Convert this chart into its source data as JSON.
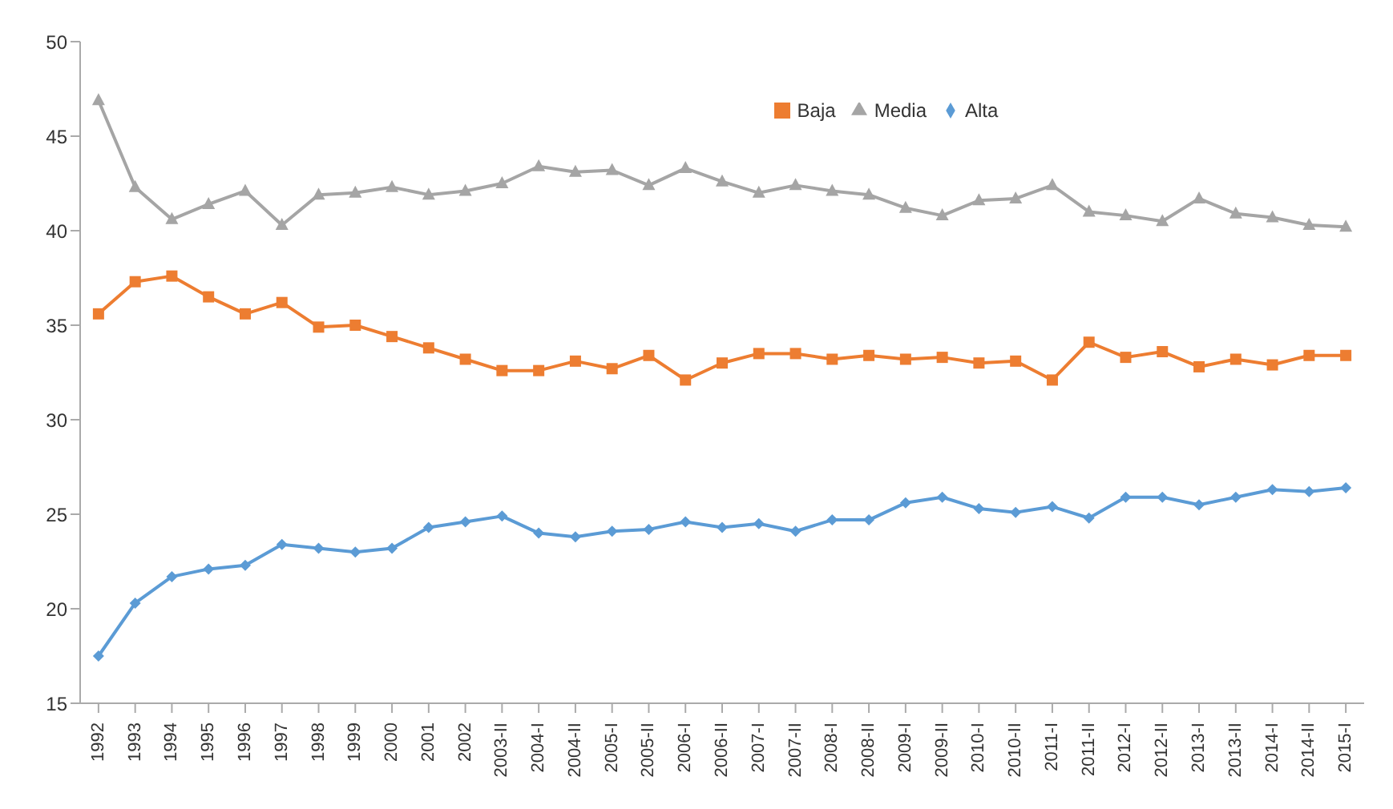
{
  "chart_data": {
    "type": "line",
    "categories": [
      "1992",
      "1993",
      "1994",
      "1995",
      "1996",
      "1997",
      "1998",
      "1999",
      "2000",
      "2001",
      "2002",
      "2003-II",
      "2004-I",
      "2004-II",
      "2005-I",
      "2005-II",
      "2006-I",
      "2006-II",
      "2007-I",
      "2007-II",
      "2008-I",
      "2008-II",
      "2009-I",
      "2009-II",
      "2010-I",
      "2010-II",
      "2011-I",
      "2011-II",
      "2012-I",
      "2012-II",
      "2013-I",
      "2013-II",
      "2014-I",
      "2014-II",
      "2015-I"
    ],
    "series": [
      {
        "name": "Baja",
        "color": "#ed7d31",
        "marker": "square",
        "values": [
          35.6,
          37.3,
          37.6,
          36.5,
          35.6,
          36.2,
          34.9,
          35.0,
          34.4,
          33.8,
          33.2,
          32.6,
          32.6,
          33.1,
          32.7,
          33.4,
          32.1,
          33.0,
          33.5,
          33.5,
          33.2,
          33.4,
          33.2,
          33.3,
          33.0,
          33.1,
          32.1,
          34.1,
          33.3,
          33.6,
          32.8,
          33.2,
          32.9,
          33.4,
          33.4
        ]
      },
      {
        "name": "Media",
        "color": "#a5a5a5",
        "marker": "triangle",
        "values": [
          46.9,
          42.3,
          40.6,
          41.4,
          42.1,
          40.3,
          41.9,
          42.0,
          42.3,
          41.9,
          42.1,
          42.5,
          43.4,
          43.1,
          43.2,
          42.4,
          43.3,
          42.6,
          42.0,
          42.4,
          42.1,
          41.9,
          41.2,
          40.8,
          41.6,
          41.7,
          42.4,
          41.0,
          40.8,
          40.5,
          41.7,
          40.9,
          40.7,
          40.3,
          40.2
        ]
      },
      {
        "name": "Alta",
        "color": "#5b9bd5",
        "marker": "diamond",
        "values": [
          17.5,
          20.3,
          21.7,
          22.1,
          22.3,
          23.4,
          23.2,
          23.0,
          23.2,
          24.3,
          24.6,
          24.9,
          24.0,
          23.8,
          24.1,
          24.2,
          24.6,
          24.3,
          24.5,
          24.1,
          24.7,
          24.7,
          25.6,
          25.9,
          25.3,
          25.1,
          25.4,
          24.8,
          25.9,
          25.9,
          25.5,
          25.9,
          26.3,
          26.2,
          26.4
        ]
      }
    ],
    "ylim": [
      15,
      50
    ],
    "yticks": [
      15,
      20,
      25,
      30,
      35,
      40,
      45,
      50
    ],
    "grid": false,
    "legend": "top",
    "line_style": "solid"
  }
}
